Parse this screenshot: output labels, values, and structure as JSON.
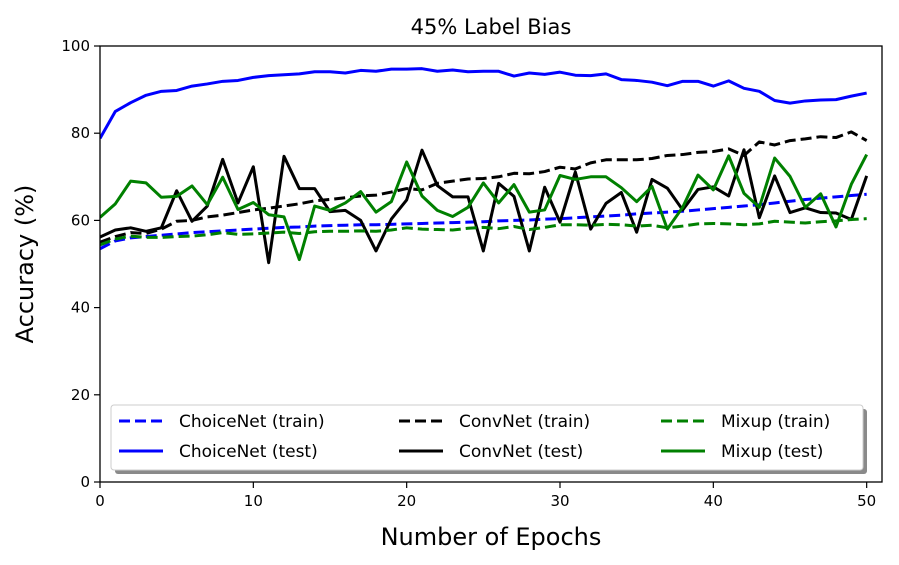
{
  "chart_data": {
    "type": "line",
    "title": "45% Label Bias",
    "xlabel": "Number of Epochs",
    "ylabel": "Accuracy (%)",
    "xlim": [
      0,
      51
    ],
    "ylim": [
      0,
      100
    ],
    "xticks": [
      0,
      10,
      20,
      30,
      40,
      50
    ],
    "yticks": [
      0,
      20,
      40,
      60,
      80,
      100
    ],
    "grid": false,
    "legend": {
      "placement": "bottom",
      "columns": 3,
      "shadow": true
    },
    "x": [
      0,
      1,
      2,
      3,
      4,
      5,
      6,
      7,
      8,
      9,
      10,
      11,
      12,
      13,
      14,
      15,
      16,
      17,
      18,
      19,
      20,
      21,
      22,
      23,
      24,
      25,
      26,
      27,
      28,
      29,
      30,
      31,
      32,
      33,
      34,
      35,
      36,
      37,
      38,
      39,
      40,
      41,
      42,
      43,
      44,
      45,
      46,
      47,
      48,
      49,
      50
    ],
    "series": [
      {
        "name": "ChoiceNet (train)",
        "color": "#0000ff",
        "style": "dashed",
        "values": [
          53.5,
          55.3,
          56.0,
          56.3,
          56.6,
          56.9,
          57.2,
          57.4,
          57.6,
          57.8,
          58.0,
          58.2,
          58.4,
          58.5,
          58.7,
          58.8,
          58.9,
          59.0,
          59.0,
          59.1,
          59.2,
          59.3,
          59.4,
          59.5,
          59.6,
          59.7,
          59.9,
          60.0,
          60.1,
          60.3,
          60.4,
          60.6,
          60.8,
          61.0,
          61.2,
          61.5,
          61.7,
          61.9,
          62.1,
          62.4,
          62.7,
          63.0,
          63.3,
          63.6,
          64.0,
          64.4,
          64.8,
          65.1,
          65.4,
          65.7,
          66.0
        ]
      },
      {
        "name": "ChoiceNet (test)",
        "color": "#0000ff",
        "style": "solid",
        "values": [
          78.8,
          85.0,
          87.0,
          88.7,
          89.6,
          89.8,
          90.8,
          91.3,
          91.9,
          92.1,
          92.8,
          93.2,
          93.4,
          93.6,
          94.1,
          94.1,
          93.8,
          94.4,
          94.2,
          94.7,
          94.7,
          94.8,
          94.2,
          94.5,
          94.1,
          94.2,
          94.2,
          93.1,
          93.8,
          93.5,
          94.0,
          93.3,
          93.2,
          93.6,
          92.3,
          92.1,
          91.7,
          90.9,
          91.9,
          91.9,
          90.8,
          92.0,
          90.3,
          89.6,
          87.5,
          86.9,
          87.4,
          87.6,
          87.7,
          88.5,
          89.2
        ]
      },
      {
        "name": "ConvNet (train)",
        "color": "#000000",
        "style": "dashed",
        "values": [
          55.0,
          56.3,
          57.2,
          57.0,
          58.0,
          59.8,
          60.0,
          60.8,
          61.2,
          61.8,
          62.4,
          62.8,
          63.3,
          63.8,
          64.5,
          64.8,
          65.2,
          65.6,
          65.8,
          66.5,
          67.3,
          67.0,
          68.5,
          69.0,
          69.5,
          69.6,
          70.0,
          70.8,
          70.7,
          71.2,
          72.2,
          71.8,
          73.2,
          73.9,
          73.9,
          73.9,
          74.2,
          74.9,
          75.1,
          75.6,
          75.8,
          76.4,
          74.9,
          78.0,
          77.3,
          78.3,
          78.7,
          79.2,
          79.0,
          80.3,
          78.3
        ]
      },
      {
        "name": "ConvNet (test)",
        "color": "#000000",
        "style": "solid",
        "values": [
          56.2,
          57.8,
          58.3,
          57.5,
          58.3,
          66.8,
          59.8,
          63.3,
          74.0,
          64.0,
          72.3,
          50.3,
          74.7,
          67.3,
          67.3,
          62.0,
          62.3,
          60.0,
          53.0,
          60.3,
          64.7,
          76.1,
          68.0,
          65.4,
          65.4,
          53.0,
          68.5,
          65.5,
          53.0,
          67.6,
          59.6,
          71.1,
          58.0,
          63.9,
          66.4,
          57.3,
          69.4,
          67.4,
          62.4,
          67.1,
          67.7,
          65.6,
          76.2,
          60.6,
          70.2,
          61.8,
          62.9,
          61.8,
          61.7,
          60.2,
          70.2
        ]
      },
      {
        "name": "Mixup (train)",
        "color": "#008000",
        "style": "dashed",
        "values": [
          54.4,
          55.7,
          56.4,
          56.1,
          56.1,
          56.3,
          56.4,
          56.7,
          57.2,
          56.8,
          56.9,
          57.1,
          57.3,
          57.0,
          57.4,
          57.5,
          57.5,
          57.6,
          57.5,
          57.8,
          58.3,
          58.0,
          57.9,
          57.8,
          58.2,
          58.4,
          58.1,
          58.6,
          57.9,
          58.4,
          59.0,
          59.0,
          58.9,
          59.1,
          59.0,
          58.7,
          58.9,
          58.3,
          58.7,
          59.2,
          59.3,
          59.2,
          59.0,
          59.2,
          59.8,
          59.6,
          59.4,
          59.7,
          59.9,
          60.2,
          60.4
        ]
      },
      {
        "name": "Mixup (test)",
        "color": "#008000",
        "style": "solid",
        "values": [
          60.7,
          63.8,
          69.0,
          68.6,
          65.3,
          65.5,
          67.9,
          63.6,
          69.9,
          62.5,
          64.1,
          61.3,
          60.8,
          51.0,
          63.3,
          62.3,
          64.0,
          66.6,
          61.9,
          64.3,
          73.4,
          65.6,
          62.3,
          60.9,
          63.0,
          68.6,
          64.0,
          68.2,
          61.9,
          62.4,
          70.3,
          69.4,
          70.0,
          70.0,
          67.5,
          64.3,
          67.8,
          58.0,
          63.0,
          70.4,
          67.0,
          74.8,
          66.2,
          63.0,
          74.3,
          70.1,
          63.0,
          66.1,
          58.5,
          68.3,
          75.1
        ]
      }
    ]
  }
}
